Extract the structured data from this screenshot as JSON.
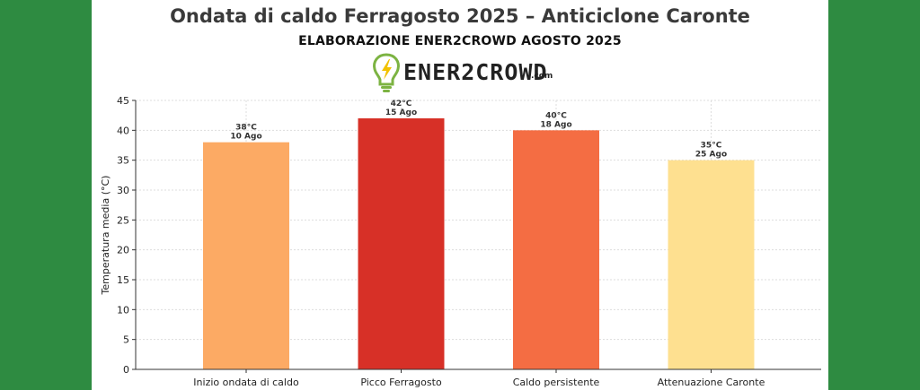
{
  "header": {
    "title": "Ondata di caldo Ferragosto 2025 – Anticiclone Caronte",
    "subtitle": "ELABORAZIONE ENER2CROWD AGOSTO 2025"
  },
  "logo": {
    "wordmark": "ENER2CROWD",
    "suffix": ".com",
    "icon": "lightbulb-bolt-icon"
  },
  "colors": {
    "band": "#2e8b41",
    "grid": "#dddddd",
    "axis": "#333333"
  },
  "chart_data": {
    "type": "bar",
    "title": "",
    "xlabel": "",
    "ylabel": "Temperatura media (°C)",
    "ylim": [
      0,
      45
    ],
    "yticks": [
      0,
      5,
      10,
      15,
      20,
      25,
      30,
      35,
      40,
      45
    ],
    "grid": true,
    "categories": [
      "Inizio ondata di caldo",
      "Picco Ferragosto",
      "Caldo persistente",
      "Attenuazione Caronte"
    ],
    "values": [
      38,
      42,
      40,
      35
    ],
    "value_labels": [
      "38°C",
      "42°C",
      "40°C",
      "35°C"
    ],
    "date_labels": [
      "10 Ago",
      "15 Ago",
      "18 Ago",
      "25 Ago"
    ],
    "bar_colors": [
      "#fcaa64",
      "#d73027",
      "#f46d43",
      "#fee090"
    ]
  }
}
